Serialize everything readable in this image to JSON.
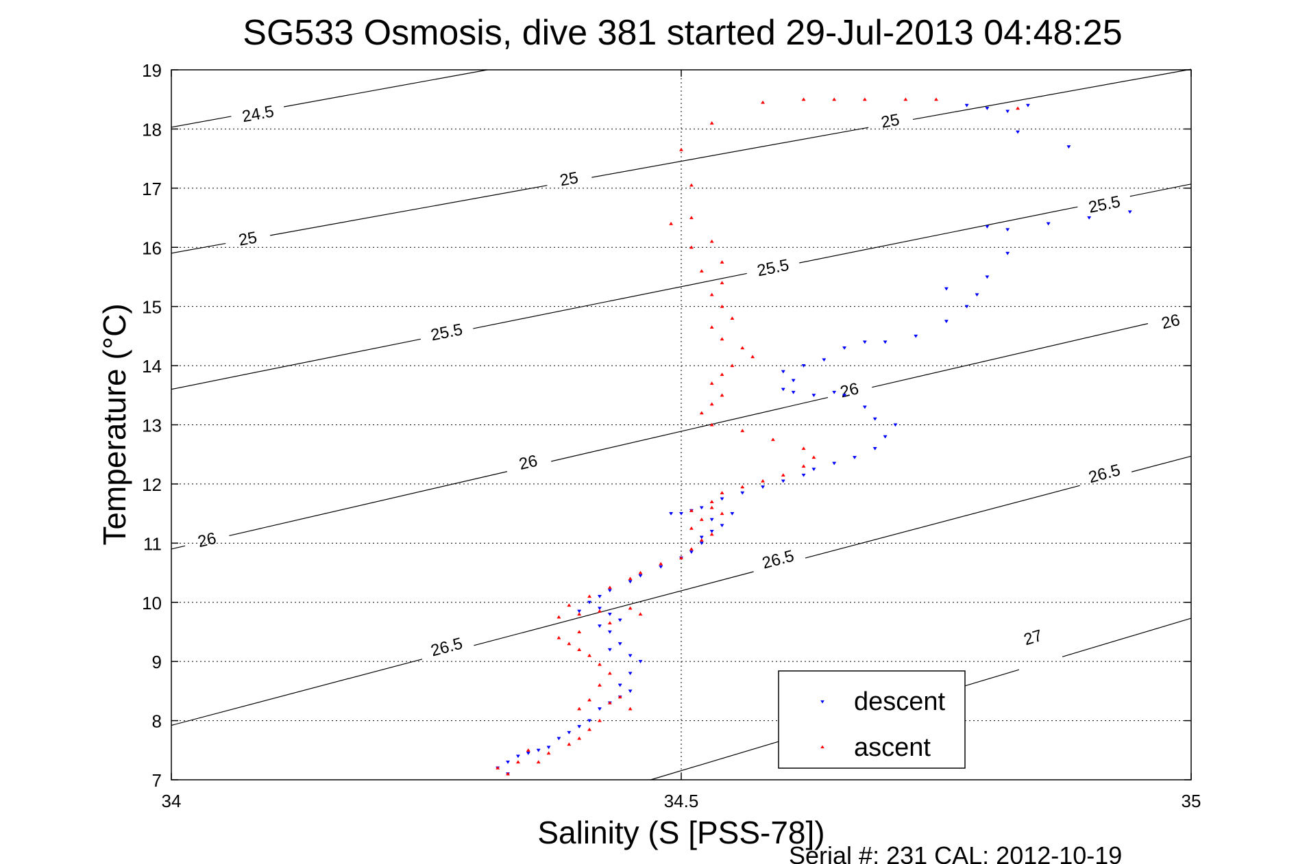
{
  "figure": {
    "title": "SG533 Osmosis, dive 381 started 29-Jul-2013 04:48:25",
    "xlabel": "Salinity (S [PSS-78])",
    "ylabel": "Temperature (°C)",
    "footer": "Serial #: 231  CAL: 2012-10-19"
  },
  "colors": {
    "descent": "#0000ff",
    "ascent": "#ff0000",
    "contour": "#000000",
    "grid": "#000000"
  },
  "chart_data": {
    "type": "scatter",
    "title": "SG533 Osmosis, dive 381 started 29-Jul-2013 04:48:25",
    "xlabel": "Salinity (S [PSS-78])",
    "ylabel": "Temperature (°C)",
    "xlim": [
      34,
      35
    ],
    "ylim": [
      7,
      19
    ],
    "xticks": [
      34,
      34.5,
      35
    ],
    "xtick_labels": [
      "34",
      "34.5",
      "35"
    ],
    "yticks": [
      7,
      8,
      9,
      10,
      11,
      12,
      13,
      14,
      15,
      16,
      17,
      18,
      19
    ],
    "ytick_labels": [
      "7",
      "8",
      "9",
      "10",
      "11",
      "12",
      "13",
      "14",
      "15",
      "16",
      "17",
      "18",
      "19"
    ],
    "grid": true,
    "legend": {
      "position": "bottom-right",
      "entries": [
        "descent",
        "ascent"
      ]
    },
    "contours": [
      {
        "level": "24.5",
        "points": [
          [
            34.0,
            18.03
          ],
          [
            34.31,
            19.0
          ]
        ],
        "labels": [
          [
            34.085,
            18.25
          ]
        ]
      },
      {
        "level": "25",
        "points": [
          [
            34.0,
            15.9
          ],
          [
            35.0,
            19.01
          ]
        ],
        "labels": [
          [
            34.075,
            16.14
          ],
          [
            34.39,
            17.15
          ],
          [
            34.705,
            18.13
          ]
        ]
      },
      {
        "level": "25.5",
        "points": [
          [
            34.0,
            13.6
          ],
          [
            35.0,
            17.07
          ]
        ],
        "labels": [
          [
            34.27,
            14.56
          ],
          [
            34.59,
            15.65
          ],
          [
            34.915,
            16.72
          ]
        ]
      },
      {
        "level": "26",
        "points": [
          [
            34.0,
            10.9
          ],
          [
            35.0,
            14.88
          ]
        ],
        "labels": [
          [
            34.035,
            11.05
          ],
          [
            34.35,
            12.36
          ],
          [
            34.665,
            13.58
          ],
          [
            34.98,
            14.74
          ]
        ]
      },
      {
        "level": "26.5",
        "points": [
          [
            34.0,
            7.92
          ],
          [
            35.0,
            12.47
          ]
        ],
        "labels": [
          [
            34.27,
            9.24
          ],
          [
            34.595,
            10.72
          ],
          [
            34.915,
            12.17
          ]
        ]
      },
      {
        "level": "27",
        "points": [
          [
            34.47,
            7.0
          ],
          [
            35.0,
            9.73
          ]
        ],
        "labels": [
          [
            34.845,
            9.4
          ]
        ]
      }
    ],
    "series": [
      {
        "name": "descent",
        "marker": "triangle-down",
        "points": [
          [
            34.33,
            7.1
          ],
          [
            34.32,
            7.2
          ],
          [
            34.33,
            7.3
          ],
          [
            34.34,
            7.4
          ],
          [
            34.36,
            7.5
          ],
          [
            34.35,
            7.45
          ],
          [
            34.37,
            7.55
          ],
          [
            34.38,
            7.7
          ],
          [
            34.39,
            7.8
          ],
          [
            34.4,
            7.9
          ],
          [
            34.41,
            8.0
          ],
          [
            34.42,
            8.2
          ],
          [
            34.43,
            8.3
          ],
          [
            34.44,
            8.4
          ],
          [
            34.45,
            8.5
          ],
          [
            34.44,
            8.6
          ],
          [
            34.45,
            8.8
          ],
          [
            34.46,
            9.0
          ],
          [
            34.45,
            9.1
          ],
          [
            34.43,
            9.2
          ],
          [
            34.44,
            9.3
          ],
          [
            34.43,
            9.5
          ],
          [
            34.42,
            9.6
          ],
          [
            34.44,
            9.7
          ],
          [
            34.43,
            9.8
          ],
          [
            34.4,
            9.85
          ],
          [
            34.42,
            9.9
          ],
          [
            34.41,
            10.0
          ],
          [
            34.42,
            10.1
          ],
          [
            34.43,
            10.2
          ],
          [
            34.45,
            10.35
          ],
          [
            34.46,
            10.45
          ],
          [
            34.48,
            10.6
          ],
          [
            34.5,
            10.75
          ],
          [
            34.51,
            10.85
          ],
          [
            34.52,
            11.0
          ],
          [
            34.52,
            11.1
          ],
          [
            34.53,
            11.2
          ],
          [
            34.54,
            11.3
          ],
          [
            34.55,
            11.5
          ],
          [
            34.53,
            11.4
          ],
          [
            34.51,
            11.55
          ],
          [
            34.5,
            11.5
          ],
          [
            34.49,
            11.5
          ],
          [
            34.52,
            11.6
          ],
          [
            34.54,
            11.75
          ],
          [
            34.56,
            11.85
          ],
          [
            34.58,
            11.95
          ],
          [
            34.6,
            12.05
          ],
          [
            34.62,
            12.15
          ],
          [
            34.63,
            12.25
          ],
          [
            34.65,
            12.35
          ],
          [
            34.67,
            12.45
          ],
          [
            34.69,
            12.6
          ],
          [
            34.7,
            12.8
          ],
          [
            34.71,
            13.0
          ],
          [
            34.69,
            13.1
          ],
          [
            34.68,
            13.3
          ],
          [
            34.66,
            13.5
          ],
          [
            34.65,
            13.55
          ],
          [
            34.63,
            13.5
          ],
          [
            34.61,
            13.55
          ],
          [
            34.6,
            13.6
          ],
          [
            34.61,
            13.75
          ],
          [
            34.6,
            13.9
          ],
          [
            34.62,
            14.0
          ],
          [
            34.64,
            14.1
          ],
          [
            34.66,
            14.3
          ],
          [
            34.68,
            14.4
          ],
          [
            34.7,
            14.4
          ],
          [
            34.73,
            14.5
          ],
          [
            34.76,
            14.75
          ],
          [
            34.78,
            15.0
          ],
          [
            34.79,
            15.2
          ],
          [
            34.76,
            15.3
          ],
          [
            34.8,
            15.5
          ],
          [
            34.82,
            15.9
          ],
          [
            34.8,
            16.35
          ],
          [
            34.82,
            16.3
          ],
          [
            34.86,
            16.4
          ],
          [
            34.9,
            16.5
          ],
          [
            34.94,
            16.6
          ],
          [
            34.88,
            17.7
          ],
          [
            34.82,
            18.3
          ],
          [
            34.84,
            18.4
          ],
          [
            34.8,
            18.35
          ],
          [
            34.78,
            18.4
          ],
          [
            34.83,
            17.95
          ]
        ]
      },
      {
        "name": "ascent",
        "marker": "triangle-up",
        "points": [
          [
            34.33,
            7.1
          ],
          [
            34.32,
            7.2
          ],
          [
            34.34,
            7.3
          ],
          [
            34.36,
            7.3
          ],
          [
            34.37,
            7.45
          ],
          [
            34.35,
            7.5
          ],
          [
            34.39,
            7.6
          ],
          [
            34.4,
            7.7
          ],
          [
            34.41,
            7.85
          ],
          [
            34.42,
            8.0
          ],
          [
            34.4,
            8.2
          ],
          [
            34.41,
            8.35
          ],
          [
            34.43,
            8.3
          ],
          [
            34.45,
            8.2
          ],
          [
            34.44,
            8.4
          ],
          [
            34.42,
            8.6
          ],
          [
            34.43,
            8.8
          ],
          [
            34.42,
            8.95
          ],
          [
            34.41,
            9.1
          ],
          [
            34.4,
            9.2
          ],
          [
            34.39,
            9.3
          ],
          [
            34.38,
            9.4
          ],
          [
            34.4,
            9.5
          ],
          [
            34.43,
            9.65
          ],
          [
            34.46,
            9.8
          ],
          [
            34.45,
            9.9
          ],
          [
            34.42,
            9.85
          ],
          [
            34.4,
            9.8
          ],
          [
            34.38,
            9.75
          ],
          [
            34.39,
            9.95
          ],
          [
            34.41,
            10.1
          ],
          [
            34.43,
            10.25
          ],
          [
            34.45,
            10.4
          ],
          [
            34.46,
            10.5
          ],
          [
            34.48,
            10.65
          ],
          [
            34.5,
            10.75
          ],
          [
            34.51,
            10.9
          ],
          [
            34.52,
            11.05
          ],
          [
            34.53,
            11.15
          ],
          [
            34.51,
            11.25
          ],
          [
            34.52,
            11.4
          ],
          [
            34.54,
            11.5
          ],
          [
            34.53,
            11.6
          ],
          [
            34.51,
            11.55
          ],
          [
            34.53,
            11.7
          ],
          [
            34.54,
            11.85
          ],
          [
            34.56,
            11.95
          ],
          [
            34.58,
            12.05
          ],
          [
            34.6,
            12.15
          ],
          [
            34.62,
            12.3
          ],
          [
            34.63,
            12.45
          ],
          [
            34.62,
            12.6
          ],
          [
            34.59,
            12.75
          ],
          [
            34.56,
            12.9
          ],
          [
            34.53,
            13.0
          ],
          [
            34.52,
            13.2
          ],
          [
            34.53,
            13.35
          ],
          [
            34.54,
            13.5
          ],
          [
            34.53,
            13.7
          ],
          [
            34.54,
            13.85
          ],
          [
            34.55,
            14.0
          ],
          [
            34.57,
            14.15
          ],
          [
            34.56,
            14.3
          ],
          [
            34.54,
            14.45
          ],
          [
            34.53,
            14.65
          ],
          [
            34.55,
            14.8
          ],
          [
            34.54,
            15.0
          ],
          [
            34.53,
            15.2
          ],
          [
            34.54,
            15.4
          ],
          [
            34.52,
            15.6
          ],
          [
            34.54,
            15.75
          ],
          [
            34.51,
            16.0
          ],
          [
            34.53,
            16.1
          ],
          [
            34.49,
            16.4
          ],
          [
            34.51,
            17.05
          ],
          [
            34.51,
            16.5
          ],
          [
            34.5,
            17.65
          ],
          [
            34.53,
            18.1
          ],
          [
            34.58,
            18.45
          ],
          [
            34.62,
            18.5
          ],
          [
            34.65,
            18.5
          ],
          [
            34.68,
            18.5
          ],
          [
            34.72,
            18.5
          ],
          [
            34.75,
            18.5
          ],
          [
            34.83,
            18.35
          ]
        ]
      }
    ]
  }
}
